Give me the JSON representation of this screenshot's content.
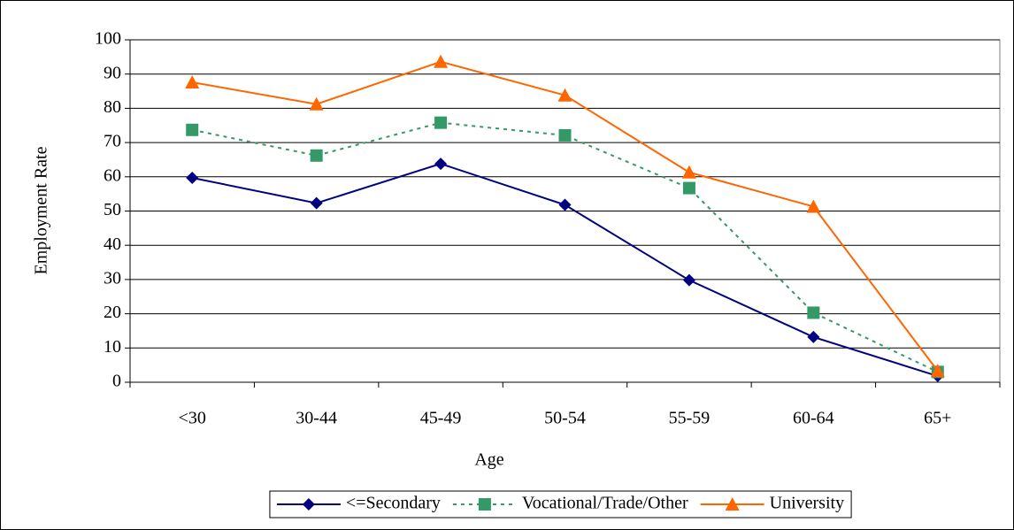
{
  "chart_data": {
    "type": "line",
    "x_label": "Age",
    "y_label": "Employment Rate",
    "categories": [
      "<30",
      "30-44",
      "45-49",
      "50-54",
      "55-59",
      "60-64",
      "65+"
    ],
    "series": [
      {
        "name": "<=Secondary",
        "color": "#000080",
        "marker": "diamond",
        "dashed": false,
        "values": [
          59.7,
          52.3,
          63.8,
          51.8,
          29.8,
          13.2,
          1.8
        ]
      },
      {
        "name": "Vocational/Trade/Other",
        "color": "#339966",
        "marker": "square",
        "dashed": true,
        "values": [
          73.7,
          66.2,
          75.8,
          72.1,
          56.7,
          20.3,
          3.0
        ]
      },
      {
        "name": "University",
        "color": "#ff6600",
        "marker": "triangle",
        "dashed": false,
        "values": [
          87.6,
          81.2,
          93.6,
          83.8,
          61.3,
          51.3,
          3.3
        ]
      }
    ],
    "ylim": [
      0,
      100
    ],
    "yticks": [
      0,
      10,
      20,
      30,
      40,
      50,
      60,
      70,
      80,
      90,
      100
    ],
    "grid": true,
    "legend": "bottom"
  }
}
